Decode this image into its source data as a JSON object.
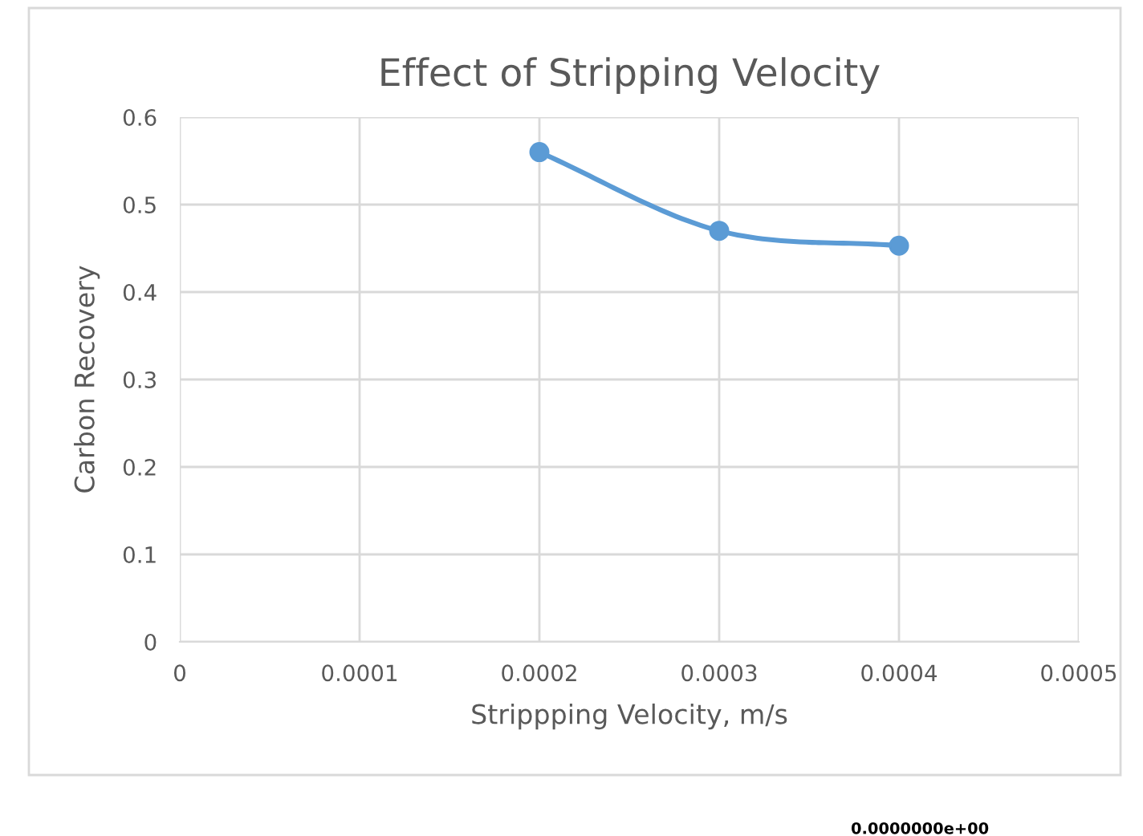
{
  "chart_data": {
    "type": "line",
    "title": "Effect of Stripping Velocity",
    "xlabel": "Strippping Velocity, m/s",
    "ylabel": "Carbon Recovery",
    "x": [
      0.0002,
      0.0003,
      0.0004
    ],
    "series": [
      {
        "color": "#5b9bd5",
        "values": [
          0.56,
          0.47,
          0.453
        ]
      }
    ],
    "xlim": [
      0,
      0.0005
    ],
    "xticks": [
      0,
      0.0001,
      0.0002,
      0.0003,
      0.0004,
      0.0005
    ],
    "ylim": [
      0,
      0.6
    ],
    "yticks": [
      0,
      0.1,
      0.2,
      0.3,
      0.4,
      0.5,
      0.6
    ],
    "grid": true,
    "marker": "circle",
    "line_style": "solid",
    "annotations": [
      "0.0000000e+00"
    ]
  }
}
